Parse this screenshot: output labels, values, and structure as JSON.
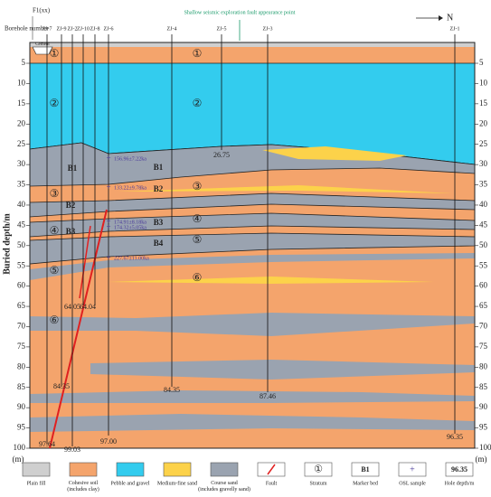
{
  "header": {
    "borehole_label": "Borehole number",
    "fault_label": "F1(xx)",
    "seismic_note": "Shallow seismic exploration fault appearance point",
    "north": "N"
  },
  "axis": {
    "title": "Buried depth/m",
    "unit": "(m)",
    "ticks": [
      5,
      10,
      15,
      20,
      25,
      30,
      35,
      40,
      45,
      50,
      55,
      60,
      65,
      70,
      75,
      80,
      85,
      90,
      95,
      100
    ]
  },
  "boreholes": [
    {
      "name": "ZJ-7"
    },
    {
      "name": "ZJ-9"
    },
    {
      "name": "ZJ-2"
    },
    {
      "name": "ZJ-10"
    },
    {
      "name": "ZJ-8"
    },
    {
      "name": "ZJ-6"
    },
    {
      "name": "ZJ-4"
    },
    {
      "name": "ZJ-5"
    },
    {
      "name": "ZJ-3"
    },
    {
      "name": "ZJ-1"
    }
  ],
  "hole_depths": [
    "97.64",
    "84.35",
    "99.03",
    "64.05",
    "64.04",
    "97.00",
    "84.35",
    "26.75",
    "87.46",
    "96.35"
  ],
  "strata": [
    "①",
    "①",
    "②",
    "②",
    "③",
    "③",
    "④",
    "④",
    "⑤",
    "⑤",
    "⑥",
    "⑥"
  ],
  "marker_beds": [
    "B1",
    "B1",
    "B2",
    "B2",
    "B3",
    "B3",
    "B4"
  ],
  "osl_samples": [
    "156.96±7.22ka",
    "133.22±9.78ka",
    "174.91±8.18ka",
    "174.32±5.05ka",
    "227.67±11.00ka"
  ],
  "legend": [
    {
      "label": "Plain fill"
    },
    {
      "label": "Cohesive soil (includes clay)"
    },
    {
      "label": "Pebble and gravel"
    },
    {
      "label": "Medium-fine sand"
    },
    {
      "label": "Course sand (includes gravelly sand)"
    },
    {
      "label": "Fault"
    },
    {
      "label": "Stratum",
      "symbol": "①"
    },
    {
      "label": "Marker bed",
      "symbol": "B1"
    },
    {
      "label": "OSL sample"
    },
    {
      "label": "Hole depth/m",
      "symbol": "96.35"
    }
  ],
  "cement": "Cement"
}
